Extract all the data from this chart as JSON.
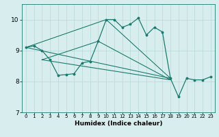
{
  "xlabel": "Humidex (Indice chaleur)",
  "bg_color": "#d8eeee",
  "line_color": "#1a7a6e",
  "grid_color": "#b8d8d8",
  "xlim": [
    -0.5,
    23.5
  ],
  "ylim": [
    7.0,
    10.5
  ],
  "yticks": [
    7,
    8,
    9,
    10
  ],
  "main_y": [
    9.1,
    9.15,
    9.0,
    8.7,
    8.2,
    8.22,
    8.25,
    8.6,
    8.65,
    9.3,
    10.0,
    10.0,
    9.75,
    9.85,
    10.05,
    9.5,
    9.75,
    9.6,
    8.1,
    7.5,
    8.1,
    8.05,
    8.05,
    8.15
  ],
  "tri1": [
    [
      0,
      9.1
    ],
    [
      10,
      10.0
    ],
    [
      18,
      8.1
    ],
    [
      0,
      9.1
    ]
  ],
  "tri2": [
    [
      2,
      8.7
    ],
    [
      9,
      9.3
    ],
    [
      18,
      8.05
    ],
    [
      2,
      8.7
    ]
  ],
  "figsize": [
    3.2,
    2.0
  ],
  "dpi": 100
}
